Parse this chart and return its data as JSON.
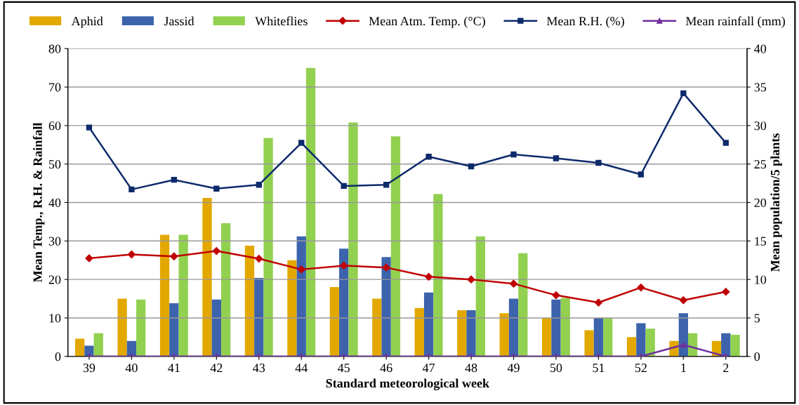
{
  "chart_data": {
    "type": "bar",
    "xlabel": "Standard meteorological week",
    "ylabel": "Mean Temp., R.H. & Rainfall",
    "y2label": "Mean population/5 plants",
    "categories": [
      "39",
      "40",
      "41",
      "42",
      "43",
      "44",
      "45",
      "46",
      "47",
      "48",
      "49",
      "50",
      "51",
      "52",
      "1",
      "2"
    ],
    "series": [
      {
        "name": "Aphid",
        "color": "#e3a800",
        "axis": "y2",
        "values": [
          2.3,
          7.5,
          15.8,
          20.6,
          14.4,
          12.5,
          9.0,
          7.5,
          6.3,
          6.0,
          5.6,
          5.0,
          3.4,
          2.5,
          2.0,
          2.0
        ]
      },
      {
        "name": "Jassid",
        "color": "#3c63ac",
        "axis": "y2",
        "values": [
          1.4,
          2.0,
          6.9,
          7.4,
          10.2,
          15.6,
          14.0,
          12.9,
          8.3,
          6.0,
          7.5,
          7.4,
          5.0,
          4.3,
          5.6,
          3.0
        ]
      },
      {
        "name": "Whiteflies",
        "color": "#92d050",
        "axis": "y2",
        "values": [
          3.0,
          7.4,
          15.8,
          17.3,
          28.4,
          37.5,
          30.4,
          28.6,
          21.1,
          15.6,
          13.4,
          7.6,
          5.0,
          3.6,
          3.0,
          2.8
        ]
      },
      {
        "name": "Mean Atm. Temp. (°C)",
        "type": "line",
        "marker": "diamond",
        "color": "#c00000",
        "values": [
          25.5,
          26.5,
          26.0,
          27.4,
          25.4,
          22.6,
          23.6,
          23.1,
          20.7,
          20.0,
          18.9,
          15.9,
          14.0,
          17.9,
          14.6,
          16.8
        ]
      },
      {
        "name": "Mean R.H. (%)",
        "type": "line",
        "marker": "square",
        "color": "#0d2a6b",
        "values": [
          59.5,
          43.4,
          45.9,
          43.6,
          44.6,
          55.5,
          44.3,
          44.6,
          51.9,
          49.4,
          52.5,
          51.5,
          50.3,
          47.3,
          68.4,
          55.5
        ]
      },
      {
        "name": "Mean rainfall (mm)",
        "type": "line",
        "marker": "triangle",
        "color": "#7030a0",
        "values": [
          0,
          0,
          0,
          0,
          0,
          0,
          0,
          0,
          0,
          0,
          0,
          0,
          0,
          0,
          3.0,
          0
        ]
      }
    ],
    "ylim": [
      0,
      80
    ],
    "yticks": [
      0,
      10,
      20,
      30,
      40,
      50,
      60,
      70,
      80
    ],
    "y2lim": [
      0,
      40
    ],
    "y2ticks": [
      0,
      5,
      10,
      15,
      20,
      25,
      30,
      35,
      40
    ],
    "grid": "y",
    "legend": "top"
  }
}
